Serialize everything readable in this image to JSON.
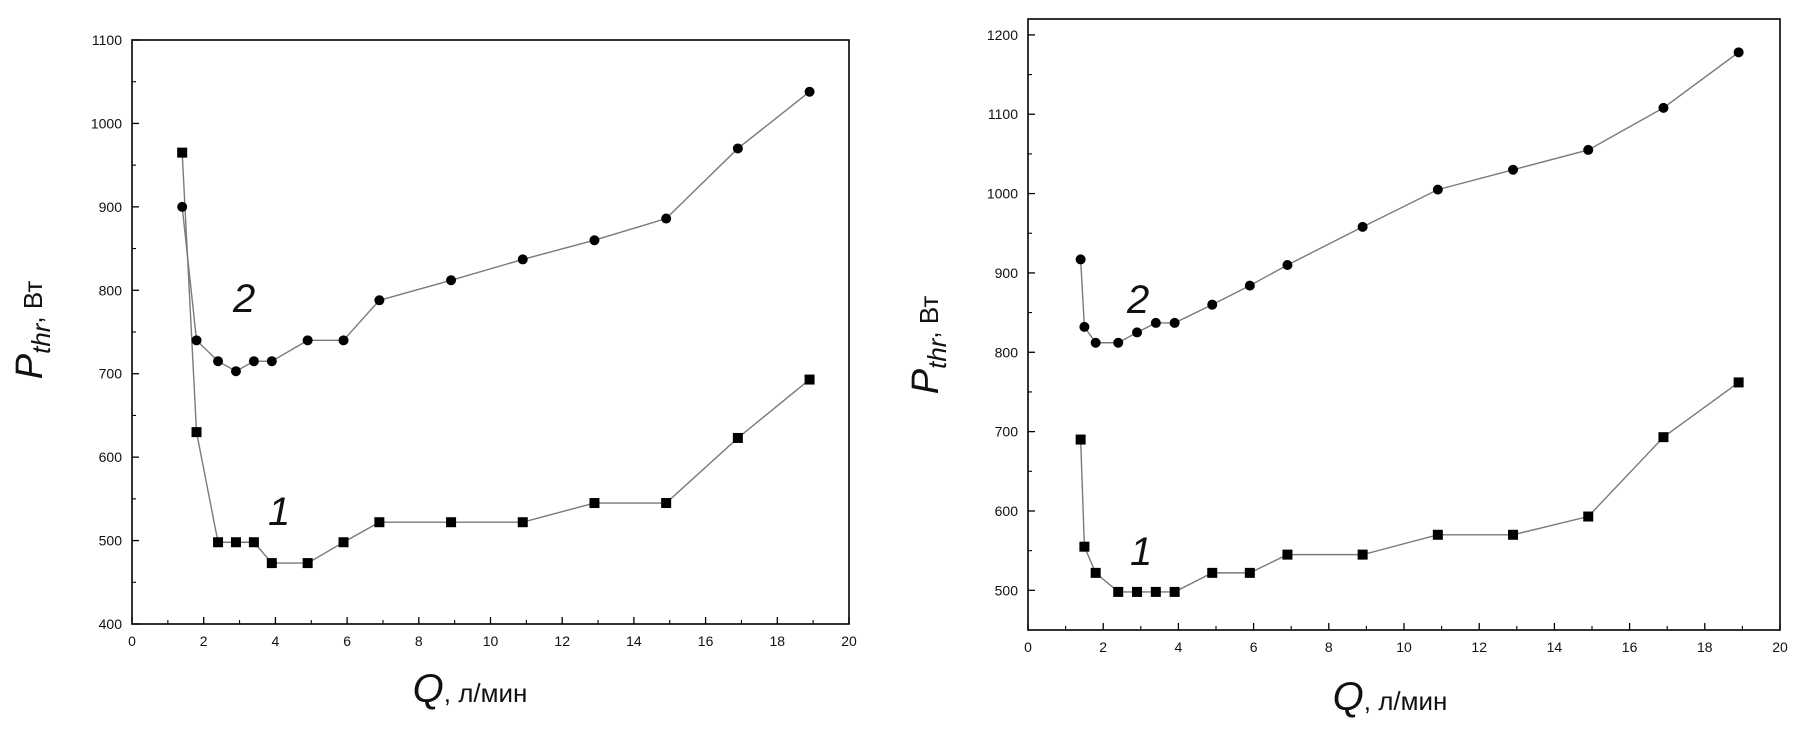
{
  "chart_data": [
    {
      "type": "line",
      "xlabel_symbol": "Q",
      "xlabel_unit": ", л/мин",
      "ylabel_symbol": "P",
      "ylabel_subscript": "thr",
      "ylabel_unit": ", Вт",
      "xlim": [
        0,
        20
      ],
      "ylim": [
        400,
        1100
      ],
      "xticks": [
        "0",
        "2",
        "4",
        "6",
        "8",
        "10",
        "12",
        "14",
        "16",
        "18",
        "20"
      ],
      "yticks": [
        "400",
        "500",
        "600",
        "700",
        "800",
        "900",
        "1000",
        "1100"
      ],
      "grid": false,
      "series": [
        {
          "name": "1",
          "marker": "square",
          "x": [
            1.4,
            1.8,
            2.4,
            2.9,
            3.4,
            3.9,
            4.9,
            5.9,
            6.9,
            8.9,
            10.9,
            12.9,
            14.9,
            16.9,
            18.9
          ],
          "y": [
            965,
            630,
            498,
            498,
            498,
            473,
            473,
            498,
            522,
            522,
            522,
            545,
            545,
            623,
            693
          ]
        },
        {
          "name": "2",
          "marker": "circle",
          "x": [
            1.4,
            1.8,
            2.4,
            2.9,
            3.4,
            3.9,
            4.9,
            5.9,
            6.9,
            8.9,
            10.9,
            12.9,
            14.9,
            16.9,
            18.9
          ],
          "y": [
            900,
            740,
            715,
            703,
            715,
            715,
            740,
            740,
            788,
            812,
            837,
            860,
            886,
            970,
            1038
          ]
        }
      ]
    },
    {
      "type": "line",
      "xlabel_symbol": "Q",
      "xlabel_unit": ", л/мин",
      "ylabel_symbol": "P",
      "ylabel_subscript": "thr",
      "ylabel_unit": ", Вт",
      "xlim": [
        0,
        20
      ],
      "ylim": [
        450,
        1220
      ],
      "xticks": [
        "0",
        "2",
        "4",
        "6",
        "8",
        "10",
        "12",
        "14",
        "16",
        "18",
        "20"
      ],
      "yticks": [
        "500",
        "600",
        "700",
        "800",
        "900",
        "1000",
        "1100",
        "1200"
      ],
      "grid": false,
      "series": [
        {
          "name": "1",
          "marker": "square",
          "x": [
            1.4,
            1.5,
            1.8,
            2.4,
            2.9,
            3.4,
            3.9,
            4.9,
            5.9,
            6.9,
            8.9,
            10.9,
            12.9,
            14.9,
            16.9,
            18.9
          ],
          "y": [
            690,
            555,
            522,
            498,
            498,
            498,
            498,
            522,
            522,
            545,
            545,
            570,
            570,
            593,
            693,
            762
          ]
        },
        {
          "name": "2",
          "marker": "circle",
          "x": [
            1.4,
            1.5,
            1.8,
            2.4,
            2.9,
            3.4,
            3.9,
            4.9,
            5.9,
            6.9,
            8.9,
            10.9,
            12.9,
            14.9,
            16.9,
            18.9
          ],
          "y": [
            917,
            832,
            812,
            812,
            825,
            837,
            837,
            860,
            884,
            910,
            958,
            1005,
            1030,
            1055,
            1108,
            1178
          ]
        }
      ]
    }
  ]
}
